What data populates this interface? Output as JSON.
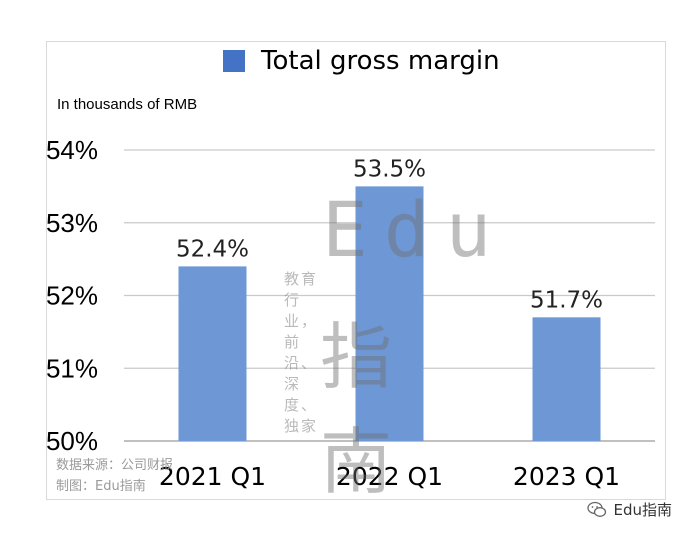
{
  "legend": {
    "label": "Total gross margin",
    "color": "#4472c4"
  },
  "unit_note": "In thousands of RMB",
  "watermark": {
    "brand": "Edu",
    "tagline": "教育行业，前沿、深度、独家",
    "brand_cn": "指南"
  },
  "source_lines": [
    "数据来源：公司财报",
    "制图：Edu指南"
  ],
  "wechat_account": "Edu指南",
  "chart_data": {
    "type": "bar",
    "title": "",
    "categories": [
      "2021 Q1",
      "2022 Q1",
      "2023 Q1"
    ],
    "series": [
      {
        "name": "Total gross margin",
        "values": [
          52.4,
          53.5,
          51.7
        ],
        "color": "#4472c4"
      }
    ],
    "value_labels": [
      "52.4%",
      "53.5%",
      "51.7%"
    ],
    "ylim": [
      50,
      54
    ],
    "yticks": [
      50,
      51,
      52,
      53,
      54
    ],
    "ytick_labels": [
      "50%",
      "51%",
      "52%",
      "53%",
      "54%"
    ],
    "grid": true,
    "legend_position": "top"
  }
}
